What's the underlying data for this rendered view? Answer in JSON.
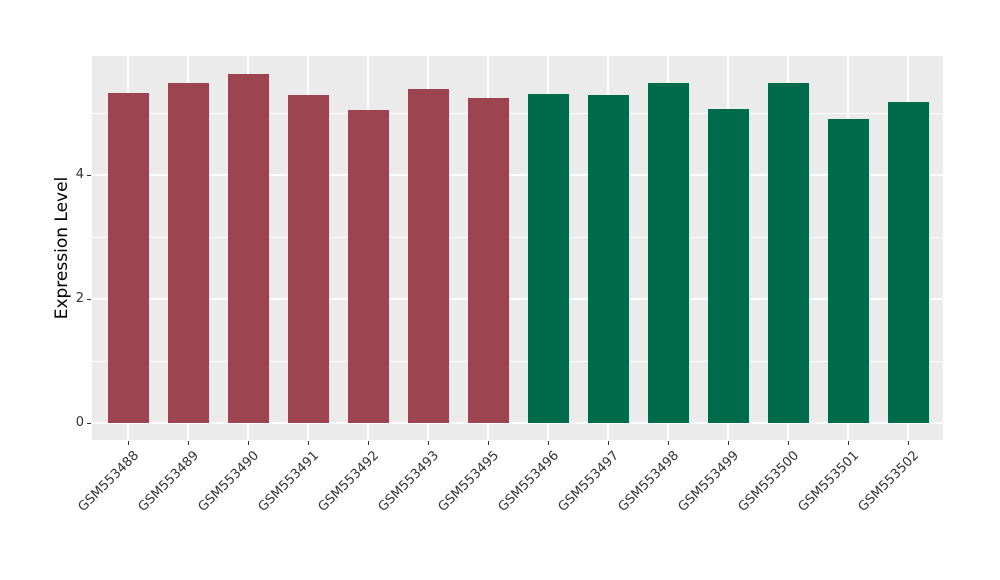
{
  "chart_data": {
    "type": "bar",
    "title": "",
    "xlabel": "",
    "ylabel": "Expression Level",
    "categories": [
      "GSM553488",
      "GSM553489",
      "GSM553490",
      "GSM553491",
      "GSM553492",
      "GSM553493",
      "GSM553495",
      "GSM553496",
      "GSM553497",
      "GSM553498",
      "GSM553499",
      "GSM553500",
      "GSM553501",
      "GSM553502"
    ],
    "values": [
      5.32,
      5.49,
      5.63,
      5.29,
      5.05,
      5.39,
      5.25,
      5.31,
      5.29,
      5.49,
      5.06,
      5.48,
      4.91,
      5.18
    ],
    "bar_colors": [
      "#9C4450",
      "#9C4450",
      "#9C4450",
      "#9C4450",
      "#9C4450",
      "#9C4450",
      "#9C4450",
      "#006B4B",
      "#006B4B",
      "#006B4B",
      "#006B4B",
      "#006B4B",
      "#006B4B",
      "#006B4B"
    ],
    "group_colors": {
      "group1": "#9C4450",
      "group2": "#006B4B"
    },
    "yticks": [
      0,
      2,
      4
    ],
    "yticks_minor": [
      1,
      3,
      5
    ],
    "ylim": [
      -0.27,
      5.92
    ],
    "x_tick_angle_deg": 45,
    "legend": "none",
    "grid": "on",
    "panel_bg": "#EBEBEB",
    "grid_color": "#FFFFFF",
    "figure_bg": "#FFFFFF"
  }
}
